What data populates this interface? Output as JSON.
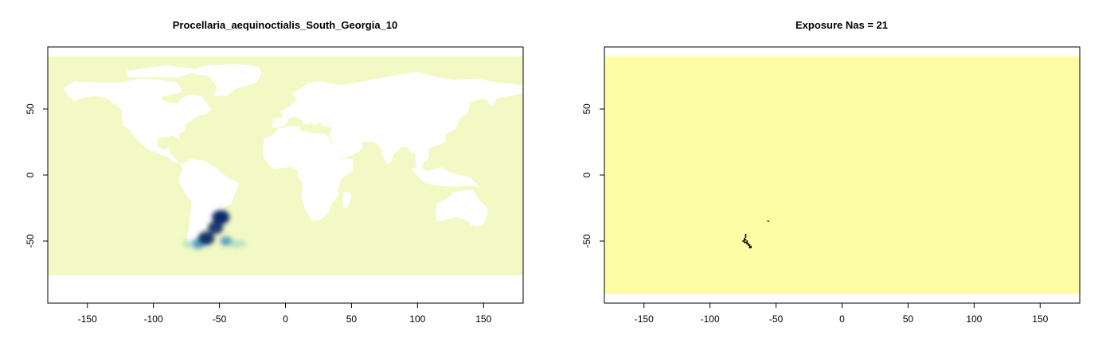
{
  "chart_data": [
    {
      "type": "heatmap",
      "title": "Procellaria_aequinoctialis_South_Georgia_10",
      "xlabel": "",
      "ylabel": "",
      "xlim": [
        -180,
        180
      ],
      "ylim": [
        -97,
        97
      ],
      "xticks": [
        -150,
        -100,
        -50,
        0,
        50,
        100,
        150
      ],
      "yticks": [
        -50,
        0,
        50
      ],
      "grid": false,
      "legend": "none",
      "raster_extent": {
        "lon": [
          -180,
          180
        ],
        "lat": [
          -76,
          90
        ]
      },
      "colors": {
        "background_raster": "#f2f9c4",
        "land": "#ffffff",
        "low": "#9fd8c0",
        "mid": "#3f8fc4",
        "high": "#0b2a6b"
      },
      "hotspots": [
        {
          "lon": -49,
          "lat": -32,
          "level": 1.0
        },
        {
          "lon": -53,
          "lat": -40,
          "level": 0.8
        },
        {
          "lon": -60,
          "lat": -48,
          "level": 0.9
        },
        {
          "lon": -66,
          "lat": -52,
          "level": 0.6
        },
        {
          "lon": -45,
          "lat": -50,
          "level": 0.5
        },
        {
          "lon": -38,
          "lat": -52,
          "level": 0.35
        },
        {
          "lon": -33,
          "lat": -52,
          "level": 0.2
        },
        {
          "lon": -74,
          "lat": -52,
          "level": 0.3
        }
      ]
    },
    {
      "type": "heatmap",
      "title": "Exposure Nas = 21",
      "xlabel": "",
      "ylabel": "",
      "xlim": [
        -180,
        180
      ],
      "ylim": [
        -97,
        97
      ],
      "xticks": [
        -150,
        -100,
        -50,
        0,
        50,
        100,
        150
      ],
      "yticks": [
        -50,
        0,
        50
      ],
      "grid": false,
      "legend": "none",
      "raster_extent": {
        "lon": [
          -180,
          180
        ],
        "lat": [
          -90,
          90
        ]
      },
      "colors": {
        "fill": "#fcfda4",
        "na_cells": "#000000"
      },
      "na_cells": [
        [
          -73,
          -45
        ],
        [
          -73,
          -46
        ],
        [
          -73,
          -47
        ],
        [
          -74,
          -48
        ],
        [
          -74,
          -49
        ],
        [
          -74,
          -50
        ],
        [
          -73,
          -51
        ],
        [
          -72,
          -52
        ],
        [
          -71,
          -52
        ],
        [
          -70,
          -53
        ],
        [
          -70,
          -54
        ],
        [
          -69,
          -54
        ],
        [
          -69,
          -55
        ],
        [
          -75,
          -50
        ],
        [
          -72,
          -50
        ],
        [
          -71,
          -53
        ],
        [
          -73,
          -49
        ],
        [
          -56,
          -35
        ],
        [
          -74,
          -51
        ],
        [
          -72,
          -51
        ],
        [
          -70,
          -55
        ]
      ]
    }
  ]
}
